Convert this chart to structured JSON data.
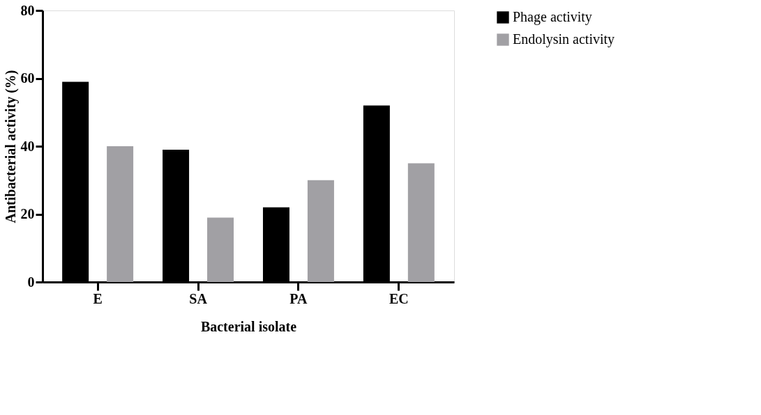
{
  "chart_data": {
    "type": "bar",
    "xlabel": "Bacterial isolate",
    "ylabel": "Antibacterial activity (%)",
    "categories": [
      "E",
      "SA",
      "PA",
      "EC"
    ],
    "series": [
      {
        "name": "Phage activity",
        "color": "#000000",
        "values": [
          59,
          39,
          22,
          52
        ]
      },
      {
        "name": "Endolysin activity",
        "color": "#a1a0a4",
        "values": [
          40,
          19,
          30,
          35
        ]
      }
    ],
    "ylim": [
      0,
      80
    ],
    "yticks": [
      0,
      20,
      40,
      60,
      80
    ],
    "grid": false,
    "legend": "top right"
  }
}
